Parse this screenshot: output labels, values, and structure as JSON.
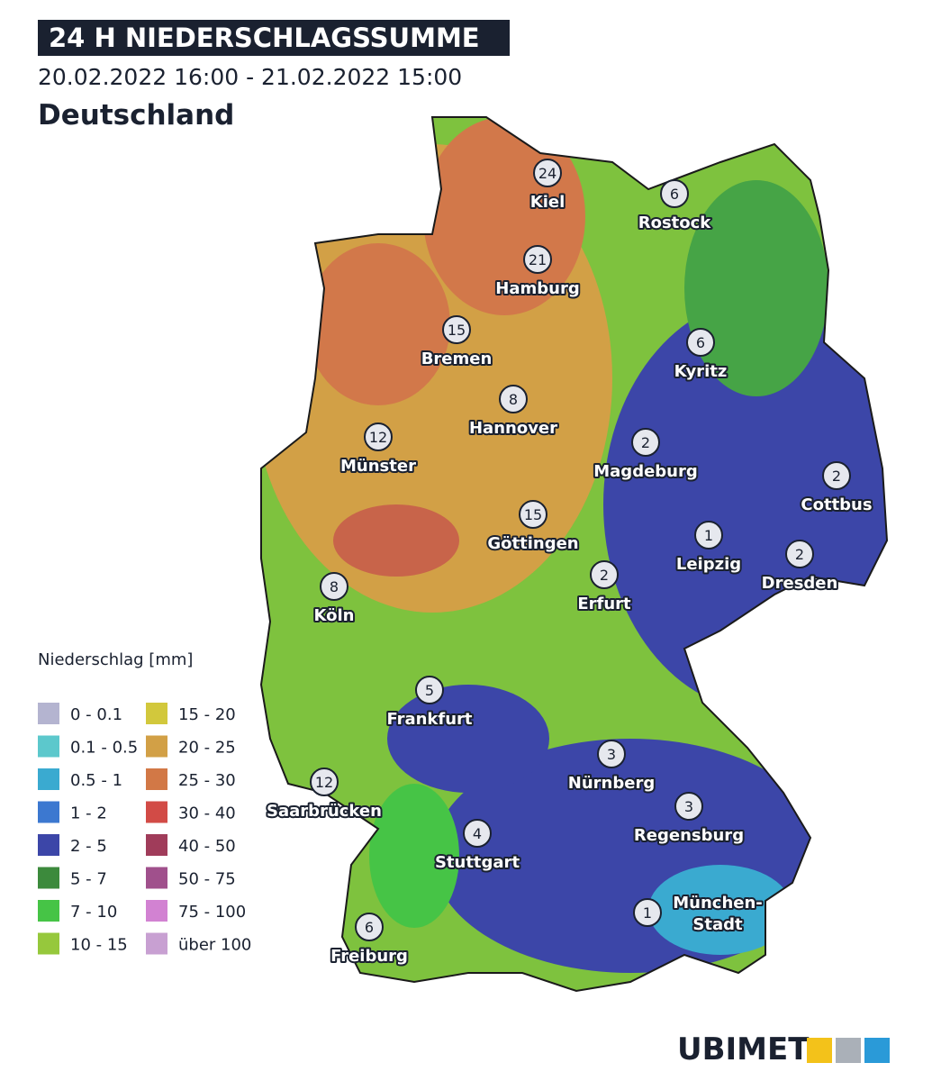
{
  "header": {
    "title": "24 H NIEDERSCHLAGSSUMME",
    "period": "20.02.2022 16:00 - 21.02.2022 15:00",
    "region": "Deutschland"
  },
  "legend": {
    "title": "Niederschlag [mm]",
    "items": [
      {
        "label": "0 - 0.1",
        "color": "#b4b4d0"
      },
      {
        "label": "0.1 - 0.5",
        "color": "#5cc8cc"
      },
      {
        "label": "0.5 - 1",
        "color": "#3aaad0"
      },
      {
        "label": "1 - 2",
        "color": "#3c78d0"
      },
      {
        "label": "2 - 5",
        "color": "#3c46a8"
      },
      {
        "label": "5 - 7",
        "color": "#3c8a3c"
      },
      {
        "label": "7 - 10",
        "color": "#46c446"
      },
      {
        "label": "10 - 15",
        "color": "#96c83c"
      },
      {
        "label": "15 - 20",
        "color": "#d2c83c"
      },
      {
        "label": "20 - 25",
        "color": "#d2a046"
      },
      {
        "label": "25 - 30",
        "color": "#d27846"
      },
      {
        "label": "30 - 40",
        "color": "#d24b46"
      },
      {
        "label": "40 - 50",
        "color": "#a03c5a"
      },
      {
        "label": "50 - 75",
        "color": "#a0508c"
      },
      {
        "label": "75 - 100",
        "color": "#d282d2"
      },
      {
        "label": "über 100",
        "color": "#c8a0d2"
      }
    ]
  },
  "cities": [
    {
      "label": [
        "Kiel"
      ],
      "value": 24
    },
    {
      "label": [
        "Rostock"
      ],
      "value": 6
    },
    {
      "label": [
        "Hamburg"
      ],
      "value": 21
    },
    {
      "label": [
        "Bremen"
      ],
      "value": 15
    },
    {
      "label": [
        "Kyritz"
      ],
      "value": 6
    },
    {
      "label": [
        "Hannover"
      ],
      "value": 8
    },
    {
      "label": [
        "Münster"
      ],
      "value": 12
    },
    {
      "label": [
        "Magdeburg"
      ],
      "value": 2
    },
    {
      "label": [
        "Cottbus"
      ],
      "value": 2
    },
    {
      "label": [
        "Leipzig"
      ],
      "value": 1
    },
    {
      "label": [
        "Göttingen"
      ],
      "value": 15
    },
    {
      "label": [
        "Dresden"
      ],
      "value": 2
    },
    {
      "label": [
        "Erfurt"
      ],
      "value": 2
    },
    {
      "label": [
        "Köln"
      ],
      "value": 8
    },
    {
      "label": [
        "Frankfurt"
      ],
      "value": 5
    },
    {
      "label": [
        "Nürnberg"
      ],
      "value": 3
    },
    {
      "label": [
        "Saarbrücken"
      ],
      "value": 12
    },
    {
      "label": [
        "Regensburg"
      ],
      "value": 3
    },
    {
      "label": [
        "Stuttgart"
      ],
      "value": 4
    },
    {
      "label": [
        "München-",
        "Stadt"
      ],
      "value": 1
    },
    {
      "label": [
        "Freiburg"
      ],
      "value": 6
    }
  ],
  "logo": "UBIMET"
}
